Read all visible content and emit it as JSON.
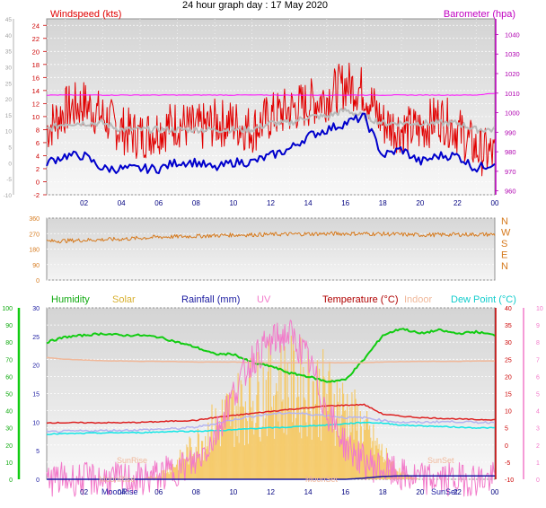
{
  "title": "24 hour graph day : 17 May 2020",
  "chart_data": [
    {
      "type": "line",
      "title": "24 hour graph day : 17 May 2020",
      "left_axis_label": "Windspeed (kts)",
      "right_axis_label": "Barometer (hpa)",
      "x_ticks": [
        "02",
        "04",
        "06",
        "08",
        "10",
        "12",
        "14",
        "16",
        "18",
        "20",
        "22",
        "00"
      ],
      "left_ticks": [
        -2,
        0,
        2,
        4,
        6,
        8,
        10,
        12,
        14,
        16,
        18,
        20,
        22,
        24
      ],
      "outer_left_ticks": [
        -10,
        -5,
        0,
        5,
        10,
        15,
        20,
        25,
        30,
        35,
        40,
        45
      ],
      "right_ticks": [
        960,
        970,
        980,
        990,
        1000,
        1010,
        1020,
        1030,
        1040
      ],
      "ylim": [
        -2,
        25
      ],
      "barometer_ylim": [
        958,
        1048
      ],
      "hours": [
        0,
        1,
        2,
        3,
        4,
        5,
        6,
        7,
        8,
        9,
        10,
        11,
        12,
        13,
        14,
        15,
        16,
        17,
        18,
        19,
        20,
        21,
        22,
        23,
        24
      ],
      "series": [
        {
          "name": "Windspeed (kts)",
          "color": "#e10000",
          "values": [
            8,
            11,
            12,
            10,
            8,
            7,
            8,
            9,
            8,
            9,
            9,
            8,
            10,
            11,
            12,
            13,
            15,
            14,
            9,
            8,
            8,
            10,
            8,
            5,
            4
          ]
        },
        {
          "name": "",
          "color": "#b9b9b9",
          "values": [
            8,
            9,
            9,
            9,
            8,
            8,
            8,
            8,
            8,
            8,
            8,
            8,
            9,
            9,
            10,
            10,
            11,
            10,
            9,
            9,
            9,
            9,
            9,
            8,
            8
          ]
        },
        {
          "name": "",
          "color": "#0000cc",
          "values": [
            3,
            4,
            4,
            2,
            2,
            2,
            2,
            3,
            3,
            2,
            3,
            3,
            4,
            5,
            7,
            8,
            9,
            10,
            4,
            5,
            3,
            4,
            4,
            2,
            3
          ]
        },
        {
          "name": "Barometer (hpa)",
          "color": "#ff00ff",
          "values": [
            1009,
            1009,
            1009,
            1009,
            1009,
            1009,
            1009,
            1009,
            1009,
            1009,
            1009,
            1009,
            1009,
            1009,
            1009,
            1009,
            1009,
            1009,
            1009,
            1009,
            1009,
            1009,
            1009,
            1009,
            1010
          ]
        }
      ]
    },
    {
      "type": "line",
      "left_ticks": [
        0,
        90,
        180,
        270,
        360
      ],
      "right_labels": [
        "N",
        "W",
        "S",
        "E",
        "N"
      ],
      "ylim": [
        0,
        360
      ],
      "hours": [
        0,
        2,
        4,
        6,
        8,
        10,
        12,
        14,
        16,
        18,
        20,
        22,
        24
      ],
      "series": [
        {
          "name": "",
          "color": "#d67a1e",
          "values": [
            225,
            232,
            238,
            250,
            255,
            262,
            265,
            268,
            270,
            268,
            262,
            265,
            265
          ]
        }
      ]
    },
    {
      "type": "line",
      "legend": [
        "Humidity",
        "Solar",
        "Rainfall (mm)",
        "UV",
        "Temperature (°C)",
        "Indoor",
        "Dew Point (°C)"
      ],
      "humidity_ticks": [
        0,
        10,
        20,
        30,
        40,
        50,
        60,
        70,
        80,
        90,
        100
      ],
      "rain_ticks": [
        0,
        5,
        10,
        15,
        20,
        25,
        30
      ],
      "temp_ticks": [
        -10,
        -5,
        0,
        5,
        10,
        15,
        20,
        25,
        30,
        35,
        40
      ],
      "uv_ticks": [
        0,
        1,
        2,
        3,
        4,
        5,
        6,
        7,
        8,
        9,
        10
      ],
      "x_ticks": [
        "02",
        "04",
        "06",
        "08",
        "10",
        "12",
        "14",
        "16",
        "18",
        "20",
        "22",
        "00"
      ],
      "x_annotations": [
        "MoonRise",
        "SunSet"
      ],
      "annotations": [
        "SunRise",
        "SunSet",
        "MoonRise",
        "MoonSet"
      ],
      "temp_ylim": [
        -10,
        40
      ],
      "hours": [
        0,
        1,
        2,
        3,
        4,
        5,
        6,
        7,
        8,
        9,
        10,
        11,
        12,
        13,
        14,
        15,
        16,
        17,
        18,
        19,
        20,
        21,
        22,
        23,
        24
      ],
      "series": [
        {
          "name": "Humidity",
          "color": "#11cc11",
          "values": [
            80,
            83,
            84,
            85,
            84,
            84,
            83,
            80,
            77,
            73,
            73,
            68,
            66,
            62,
            60,
            57,
            58,
            70,
            84,
            88,
            85,
            87,
            85,
            86,
            84
          ]
        },
        {
          "name": "Temperature (°C)",
          "color": "#dd2222",
          "values": [
            6.5,
            6.5,
            6.5,
            6.5,
            6.5,
            6.6,
            6.8,
            7.0,
            7.2,
            8.0,
            8.6,
            9.2,
            9.8,
            10.4,
            10.8,
            11.4,
            11.6,
            11.8,
            9.0,
            8.4,
            8.0,
            7.8,
            7.6,
            7.4,
            7.4
          ]
        },
        {
          "name": "Indoor",
          "color": "#f0b89a",
          "values": [
            25.5,
            25.0,
            24.8,
            24.6,
            24.5,
            24.4,
            24.4,
            24.3,
            24.2,
            24.2,
            24.2,
            24.1,
            24.0,
            24.0,
            24.0,
            24.0,
            24.0,
            24.0,
            24.2,
            24.3,
            24.4,
            24.4,
            24.4,
            24.5,
            24.5
          ]
        },
        {
          "name": "",
          "color": "#b4b4f0",
          "values": [
            3.8,
            4.0,
            4.1,
            4.2,
            4.3,
            4.4,
            4.6,
            4.8,
            5.2,
            6.2,
            7.4,
            8.4,
            9.0,
            9.4,
            9.0,
            8.6,
            8.0,
            8.0,
            7.2,
            6.6,
            6.6,
            6.8,
            6.8,
            6.6,
            6.6
          ]
        },
        {
          "name": "Dew Point (°C)",
          "color": "#11e6e6",
          "values": [
            3.2,
            3.3,
            3.4,
            3.5,
            3.6,
            3.6,
            3.8,
            4.0,
            4.0,
            4.2,
            4.4,
            4.8,
            5.0,
            5.2,
            5.6,
            5.8,
            6.2,
            6.6,
            6.4,
            5.8,
            5.6,
            5.4,
            5.2,
            5.0,
            5.0
          ]
        },
        {
          "name": "Solar",
          "color": "#f6c65a",
          "values": [
            0,
            0,
            0,
            0,
            0,
            0,
            0.3,
            1.2,
            2.5,
            3.8,
            5.0,
            6.0,
            6.6,
            6.8,
            6.6,
            6.0,
            5.0,
            3.5,
            1.8,
            0.4,
            0,
            0,
            0,
            0,
            0
          ]
        },
        {
          "name": "UV",
          "color": "#f27aca",
          "values": [
            0,
            0,
            0,
            0,
            0,
            0,
            0.2,
            0.6,
            1.0,
            2.5,
            5.0,
            7.0,
            8.0,
            8.5,
            7.0,
            4.0,
            2.0,
            1.0,
            0.6,
            0.2,
            0,
            0,
            0,
            0,
            0
          ]
        },
        {
          "name": "Rainfall (mm)",
          "color": "#1a1aa0",
          "values": [
            0,
            0,
            0,
            0,
            0,
            0,
            0,
            0,
            0,
            0,
            0,
            0,
            0,
            0,
            0,
            0,
            0,
            0.2,
            0.5,
            0.6,
            0.6,
            0.6,
            0.6,
            0.6,
            0.6
          ]
        }
      ]
    }
  ]
}
